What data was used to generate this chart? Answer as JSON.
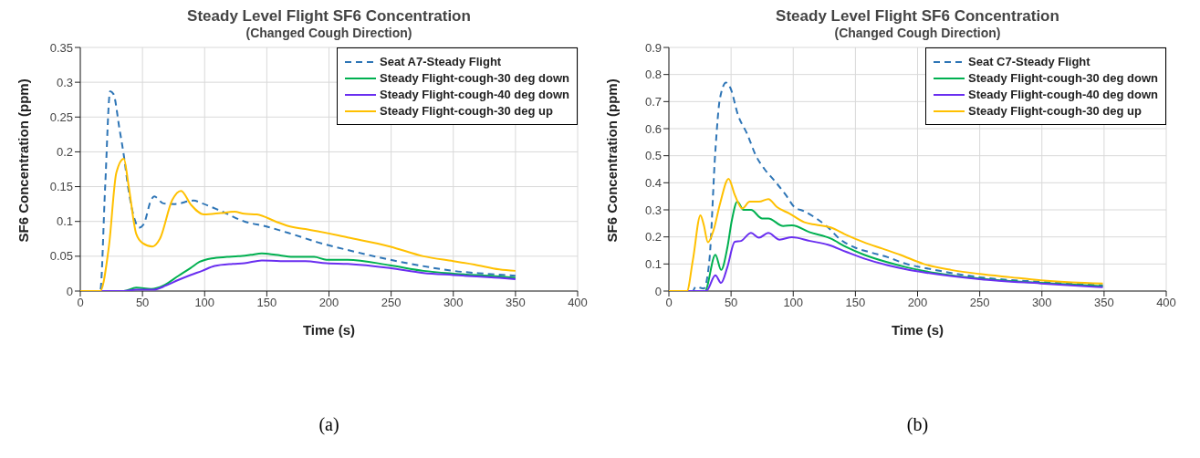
{
  "chart_data": [
    {
      "type": "line",
      "title": "Steady Level Flight SF6 Concentration",
      "subtitle": "(Changed Cough Direction)",
      "xlabel": "Time (s)",
      "ylabel": "SF6 Concentration (ppm)",
      "annotations": [
        "(a)"
      ],
      "xlim": [
        0,
        400
      ],
      "xticks": [
        0,
        50,
        100,
        150,
        200,
        250,
        300,
        350,
        400
      ],
      "ylim": [
        0,
        0.35
      ],
      "yticks": [
        0,
        0.05,
        0.1,
        0.15,
        0.2,
        0.25,
        0.3,
        0.35
      ],
      "grid": true,
      "legend": "top right",
      "series": [
        {
          "name": "Seat A7-Steady Flight",
          "color": "#2e75b6",
          "line_style": "dashed",
          "x": [
            0,
            16,
            20,
            24,
            26.7,
            31.5,
            35,
            38.8,
            43.7,
            47.3,
            51,
            57,
            59.5,
            66.7,
            76,
            91,
            98,
            113,
            132,
            149,
            170,
            191,
            215,
            249,
            275,
            300,
            325,
            350
          ],
          "values": [
            0,
            0,
            0.15,
            0.287,
            0.283,
            0.233,
            0.195,
            0.145,
            0.103,
            0.091,
            0.096,
            0.131,
            0.136,
            0.126,
            0.125,
            0.13,
            0.126,
            0.115,
            0.1,
            0.093,
            0.082,
            0.07,
            0.059,
            0.045,
            0.036,
            0.029,
            0.025,
            0.022
          ]
        },
        {
          "name": "Steady Flight-cough-30 deg down",
          "color": "#00b050",
          "x": [
            0,
            35,
            45,
            57,
            67,
            79,
            88.6,
            96,
            105.6,
            118,
            127,
            137,
            146,
            157,
            171,
            188,
            198,
            215,
            249,
            276,
            300,
            337,
            350
          ],
          "values": [
            0,
            0,
            0.005,
            0.003,
            0.008,
            0.022,
            0.033,
            0.042,
            0.047,
            0.049,
            0.05,
            0.052,
            0.054,
            0.052,
            0.049,
            0.049,
            0.045,
            0.045,
            0.037,
            0.029,
            0.025,
            0.021,
            0.019
          ]
        },
        {
          "name": "Steady Flight-cough-40 deg down",
          "color": "#6a2ff0",
          "x": [
            0,
            35,
            45,
            59,
            69,
            79,
            88.6,
            98,
            108,
            122.6,
            132,
            146,
            161,
            181,
            198,
            215,
            249,
            276,
            300,
            337,
            350
          ],
          "values": [
            0,
            0,
            0.002,
            0.002,
            0.008,
            0.016,
            0.023,
            0.029,
            0.036,
            0.039,
            0.04,
            0.044,
            0.043,
            0.043,
            0.04,
            0.039,
            0.033,
            0.026,
            0.023,
            0.019,
            0.017
          ]
        },
        {
          "name": "Steady Flight-cough-30 deg up",
          "color": "#ffc000",
          "x": [
            0,
            16,
            23,
            29,
            35,
            38.8,
            45,
            50,
            58,
            64,
            74,
            81,
            89,
            99.5,
            113,
            124,
            132,
            142,
            157,
            166,
            181,
            191,
            215,
            249,
            276,
            300,
            317,
            337,
            350
          ],
          "values": [
            0,
            0,
            0.064,
            0.17,
            0.19,
            0.152,
            0.082,
            0.069,
            0.064,
            0.075,
            0.131,
            0.144,
            0.124,
            0.11,
            0.112,
            0.114,
            0.111,
            0.11,
            0.1,
            0.094,
            0.089,
            0.086,
            0.077,
            0.064,
            0.05,
            0.043,
            0.038,
            0.031,
            0.029
          ]
        }
      ]
    },
    {
      "type": "line",
      "title": "Steady Level Flight SF6 Concentration",
      "subtitle": "(Changed Cough Direction)",
      "xlabel": "Time (s)",
      "ylabel": "SF6 Concentration (ppm)",
      "annotations": [
        "(b)"
      ],
      "xlim": [
        0,
        400
      ],
      "xticks": [
        0,
        50,
        100,
        150,
        200,
        250,
        300,
        350,
        400
      ],
      "ylim": [
        0,
        0.9
      ],
      "yticks": [
        0,
        0.1,
        0.2,
        0.3,
        0.4,
        0.5,
        0.6,
        0.7,
        0.8,
        0.9
      ],
      "grid": true,
      "legend": "top right",
      "series": [
        {
          "name": "Seat C7-Steady Flight",
          "color": "#2e75b6",
          "line_style": "dashed",
          "x": [
            0,
            19,
            21.7,
            28,
            32.6,
            37.4,
            41,
            46,
            49.5,
            55.6,
            63,
            70,
            77,
            84.5,
            94,
            101,
            108.7,
            118,
            128,
            138,
            150,
            162,
            176,
            191,
            205,
            250,
            299,
            349
          ],
          "values": [
            0,
            0,
            0.016,
            0.009,
            0.115,
            0.52,
            0.71,
            0.77,
            0.75,
            0.65,
            0.58,
            0.5,
            0.45,
            0.41,
            0.355,
            0.31,
            0.295,
            0.27,
            0.235,
            0.19,
            0.16,
            0.143,
            0.125,
            0.1,
            0.086,
            0.051,
            0.034,
            0.021
          ]
        },
        {
          "name": "Steady Flight-cough-30 deg down",
          "color": "#00b050",
          "x": [
            0,
            29,
            37.4,
            42,
            47,
            50.7,
            55,
            60,
            66,
            75,
            80,
            92,
            99,
            113.5,
            130,
            142.5,
            157,
            176,
            191,
            205,
            250,
            299,
            349
          ],
          "values": [
            0,
            0,
            0.134,
            0.078,
            0.16,
            0.263,
            0.33,
            0.3,
            0.3,
            0.268,
            0.268,
            0.24,
            0.243,
            0.217,
            0.194,
            0.163,
            0.134,
            0.106,
            0.088,
            0.074,
            0.046,
            0.03,
            0.018
          ]
        },
        {
          "name": "Steady Flight-cough-40 deg down",
          "color": "#6a2ff0",
          "x": [
            0,
            30,
            37.4,
            42,
            47,
            53,
            58,
            66,
            72.5,
            80,
            89,
            99,
            113.5,
            128,
            142.5,
            157,
            176,
            191,
            205,
            250,
            299,
            349
          ],
          "values": [
            0,
            0,
            0.058,
            0.03,
            0.088,
            0.182,
            0.185,
            0.215,
            0.197,
            0.215,
            0.19,
            0.199,
            0.185,
            0.171,
            0.145,
            0.12,
            0.095,
            0.08,
            0.069,
            0.044,
            0.028,
            0.014
          ]
        },
        {
          "name": "Steady Flight-cough-30 deg up",
          "color": "#ffc000",
          "x": [
            0,
            14.5,
            19.3,
            25.4,
            28,
            31.4,
            36,
            41,
            48,
            53,
            59,
            65,
            72.5,
            80,
            87,
            97,
            109,
            118,
            130,
            142.5,
            157,
            171.5,
            186,
            205,
            227,
            250,
            275,
            299,
            324,
            349
          ],
          "values": [
            0,
            0,
            0.115,
            0.28,
            0.245,
            0.18,
            0.226,
            0.32,
            0.415,
            0.355,
            0.305,
            0.33,
            0.33,
            0.34,
            0.31,
            0.286,
            0.254,
            0.245,
            0.235,
            0.208,
            0.18,
            0.157,
            0.134,
            0.1,
            0.078,
            0.063,
            0.051,
            0.04,
            0.032,
            0.028
          ]
        }
      ]
    }
  ]
}
